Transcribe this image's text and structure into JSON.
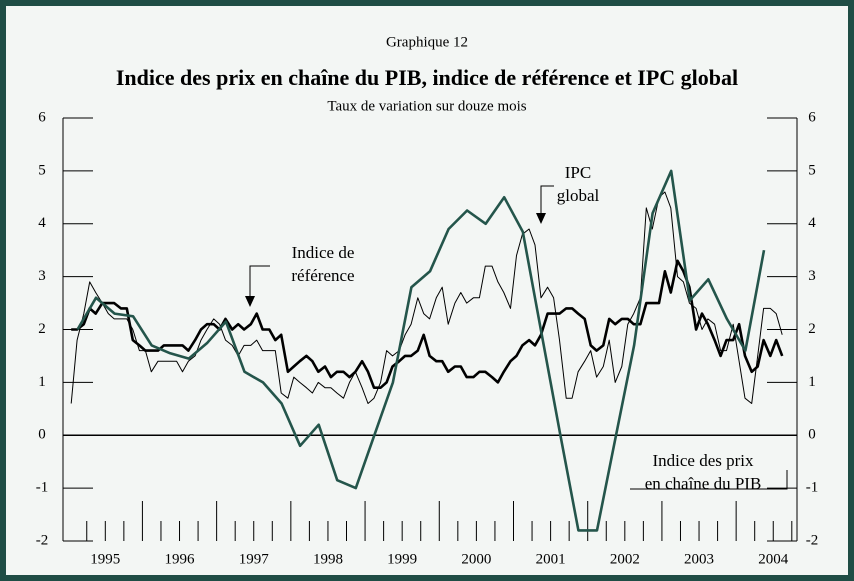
{
  "chart_data": {
    "type": "line",
    "label": "Graphique 12",
    "title": "Indice des prix en chaîne du PIB, indice de référence et IPC global",
    "subtitle": "Taux de variation sur douze mois",
    "x": [
      1995.04,
      1995.12,
      1995.21,
      1995.29,
      1995.37,
      1995.46,
      1995.54,
      1995.62,
      1995.71,
      1995.79,
      1995.87,
      1995.96,
      1996.04,
      1996.12,
      1996.21,
      1996.29,
      1996.37,
      1996.46,
      1996.54,
      1996.62,
      1996.71,
      1996.79,
      1996.87,
      1996.96,
      1997.04,
      1997.12,
      1997.21,
      1997.29,
      1997.37,
      1997.46,
      1997.54,
      1997.62,
      1997.71,
      1997.79,
      1997.87,
      1997.96,
      1998.04,
      1998.12,
      1998.21,
      1998.29,
      1998.37,
      1998.46,
      1998.54,
      1998.62,
      1998.71,
      1998.79,
      1998.87,
      1998.96,
      1999.04,
      1999.12,
      1999.21,
      1999.29,
      1999.37,
      1999.46,
      1999.54,
      1999.62,
      1999.71,
      1999.79,
      1999.87,
      1999.96,
      2000.04,
      2000.12,
      2000.21,
      2000.29,
      2000.37,
      2000.46,
      2000.54,
      2000.62,
      2000.71,
      2000.79,
      2000.87,
      2000.96,
      2001.04,
      2001.12,
      2001.21,
      2001.29,
      2001.37,
      2001.46,
      2001.54,
      2001.62,
      2001.71,
      2001.79,
      2001.87,
      2001.96,
      2002.04,
      2002.12,
      2002.21,
      2002.29,
      2002.37,
      2002.46,
      2002.54,
      2002.62,
      2002.71,
      2002.79,
      2002.87,
      2002.96,
      2003.04,
      2003.12,
      2003.21,
      2003.29,
      2003.37,
      2003.46,
      2003.54,
      2003.62,
      2003.71,
      2003.79,
      2003.87,
      2003.96,
      2004.04,
      2004.12,
      2004.21,
      2004.29,
      2004.37,
      2004.46,
      2004.54,
      2004.62
    ],
    "series": [
      {
        "name": "IPC global",
        "color": "#000000",
        "width": 1,
        "values": [
          0.6,
          1.8,
          2.3,
          2.9,
          2.7,
          2.5,
          2.3,
          2.2,
          2.2,
          2.2,
          2.0,
          1.6,
          1.6,
          1.2,
          1.4,
          1.4,
          1.4,
          1.4,
          1.2,
          1.4,
          1.5,
          1.8,
          2.0,
          2.2,
          2.1,
          1.8,
          1.7,
          1.5,
          1.7,
          1.7,
          1.8,
          1.6,
          1.6,
          1.6,
          0.8,
          0.7,
          1.1,
          1.0,
          0.9,
          0.8,
          1.0,
          0.9,
          0.9,
          0.8,
          0.7,
          1.0,
          1.2,
          0.9,
          0.6,
          0.7,
          1.0,
          1.6,
          1.5,
          1.6,
          1.9,
          2.1,
          2.6,
          2.3,
          2.2,
          2.6,
          2.8,
          2.1,
          2.5,
          2.7,
          2.5,
          2.6,
          2.6,
          3.2,
          3.2,
          2.9,
          2.7,
          2.4,
          3.4,
          3.8,
          3.9,
          3.6,
          2.6,
          2.8,
          2.6,
          1.8,
          0.7,
          0.7,
          1.2,
          1.4,
          1.6,
          1.1,
          1.3,
          1.8,
          1.0,
          1.3,
          2.1,
          2.3,
          2.6,
          4.3,
          3.9,
          4.5,
          4.6,
          4.3,
          3.0,
          2.9,
          2.5,
          2.4,
          2.0,
          2.2,
          2.1,
          1.6,
          1.6,
          2.1,
          1.4,
          0.7,
          0.6,
          1.5,
          2.4,
          2.4,
          2.3,
          1.9
        ]
      },
      {
        "name": "Indice de référence",
        "color": "#000000",
        "width": 2.6,
        "values": [
          2.0,
          2.0,
          2.1,
          2.4,
          2.3,
          2.5,
          2.5,
          2.5,
          2.4,
          2.4,
          1.8,
          1.7,
          1.6,
          1.6,
          1.6,
          1.7,
          1.7,
          1.7,
          1.7,
          1.6,
          1.8,
          2.0,
          2.1,
          2.1,
          2.0,
          2.2,
          2.0,
          2.1,
          2.0,
          2.1,
          2.3,
          2.0,
          2.0,
          1.8,
          1.9,
          1.2,
          1.3,
          1.4,
          1.5,
          1.4,
          1.2,
          1.3,
          1.1,
          1.2,
          1.2,
          1.1,
          1.2,
          1.4,
          1.2,
          0.9,
          0.9,
          1.0,
          1.3,
          1.4,
          1.5,
          1.5,
          1.6,
          1.9,
          1.5,
          1.4,
          1.4,
          1.2,
          1.3,
          1.3,
          1.1,
          1.1,
          1.2,
          1.2,
          1.1,
          1.0,
          1.2,
          1.4,
          1.5,
          1.7,
          1.8,
          1.7,
          1.9,
          2.3,
          2.3,
          2.3,
          2.4,
          2.4,
          2.3,
          2.2,
          1.7,
          1.6,
          1.7,
          2.2,
          2.1,
          2.2,
          2.2,
          2.1,
          2.1,
          2.5,
          2.5,
          2.5,
          3.1,
          2.7,
          3.3,
          3.1,
          2.8,
          2.0,
          2.3,
          2.1,
          1.8,
          1.5,
          1.8,
          1.8,
          2.1,
          1.5,
          1.2,
          1.3,
          1.8,
          1.5,
          1.8,
          1.5
        ]
      },
      {
        "name": "Indice des prix en chaîne du PIB",
        "color": "#24554b",
        "width": 2.6,
        "x": [
          1995.125,
          1995.375,
          1995.625,
          1995.875,
          1996.125,
          1996.375,
          1996.625,
          1996.875,
          1997.125,
          1997.375,
          1997.625,
          1997.875,
          1998.125,
          1998.375,
          1998.625,
          1998.875,
          1999.125,
          1999.375,
          1999.625,
          1999.875,
          2000.125,
          2000.375,
          2000.625,
          2000.875,
          2001.125,
          2001.375,
          2001.625,
          2001.875,
          2002.125,
          2002.375,
          2002.625,
          2002.875,
          2003.125,
          2003.375,
          2003.625,
          2003.875,
          2004.125,
          2004.375
        ],
        "values": [
          2.0,
          2.6,
          2.3,
          2.25,
          1.7,
          1.55,
          1.45,
          1.75,
          2.15,
          1.2,
          1.0,
          0.6,
          -0.2,
          0.2,
          -0.85,
          -1.0,
          0.0,
          1.0,
          2.8,
          3.1,
          3.9,
          4.25,
          4.0,
          4.5,
          3.85,
          1.95,
          0.05,
          -1.8,
          -1.8,
          -0.05,
          1.7,
          4.2,
          5.0,
          2.55,
          2.95,
          2.2,
          1.6,
          3.5
        ]
      }
    ],
    "annotations": [
      {
        "lines": [
          "IPC",
          "global"
        ]
      },
      {
        "lines": [
          "Indice de",
          "référence"
        ]
      },
      {
        "lines": [
          "Indice des prix",
          "en chaîne du PIB"
        ]
      }
    ],
    "xlim": [
      1994.93,
      2004.82
    ],
    "xticks": [
      {
        "value": 1995.5,
        "label": "1995"
      },
      {
        "value": 1996.5,
        "label": "1996"
      },
      {
        "value": 1997.5,
        "label": "1997"
      },
      {
        "value": 1998.5,
        "label": "1998"
      },
      {
        "value": 1999.5,
        "label": "1999"
      },
      {
        "value": 2000.5,
        "label": "2000"
      },
      {
        "value": 2001.5,
        "label": "2001"
      },
      {
        "value": 2002.5,
        "label": "2002"
      },
      {
        "value": 2003.5,
        "label": "2003"
      },
      {
        "value": 2004.5,
        "label": "2004"
      }
    ],
    "ylim": [
      -2,
      6
    ],
    "yticks": [
      -2,
      -1,
      0,
      1,
      2,
      3,
      4,
      5,
      6
    ]
  }
}
